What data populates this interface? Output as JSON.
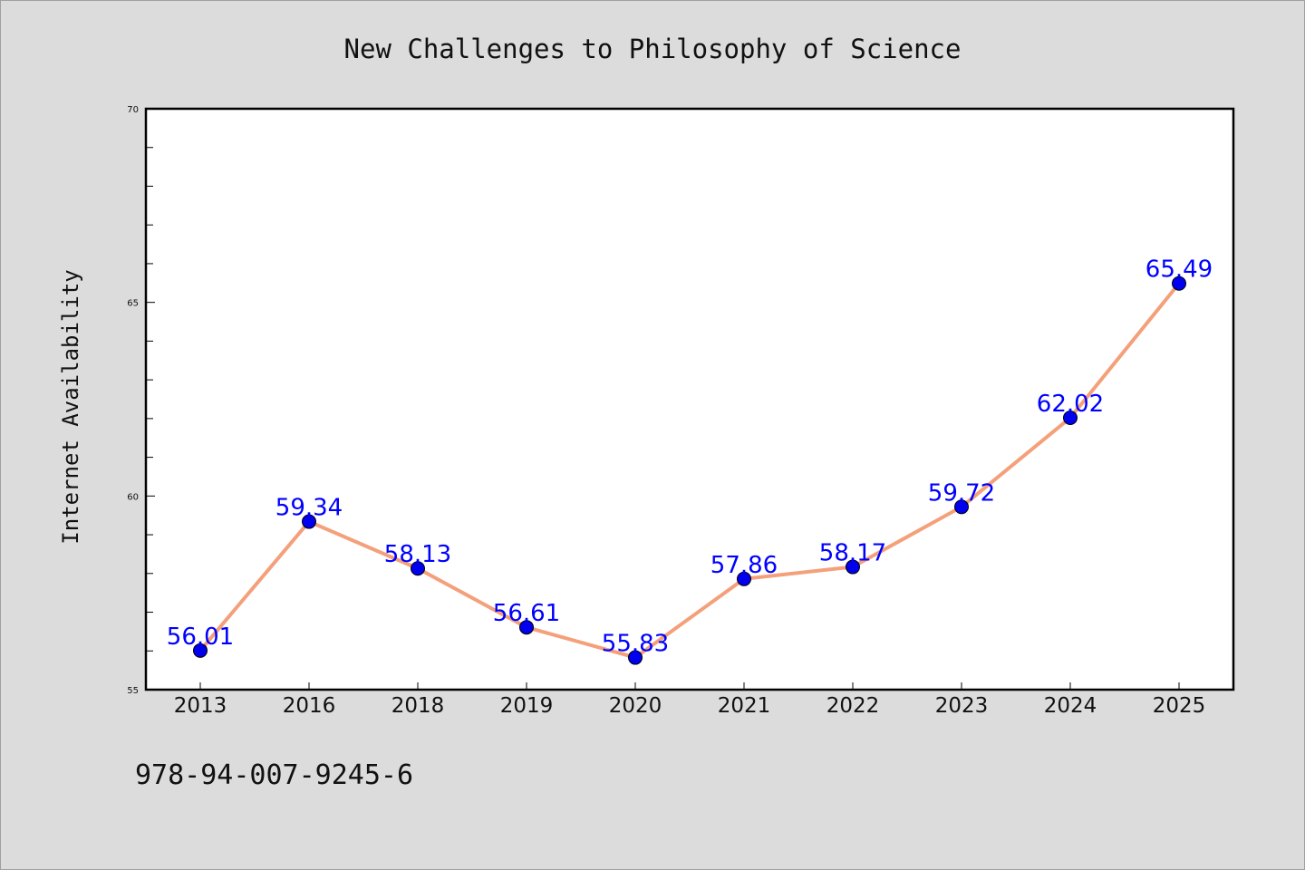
{
  "chart_data": {
    "type": "line",
    "title": "New Challenges to Philosophy of Science",
    "xlabel": "",
    "ylabel": "Internet Availability",
    "categories": [
      "2013",
      "2016",
      "2018",
      "2019",
      "2020",
      "2021",
      "2022",
      "2023",
      "2024",
      "2025"
    ],
    "series": [
      {
        "values": [
          56.01,
          59.34,
          58.13,
          56.61,
          55.83,
          57.86,
          58.17,
          59.72,
          62.02,
          65.49
        ],
        "data_labels": [
          "56.01",
          "59.34",
          "58.13",
          "56.61",
          "55.83",
          "57.86",
          "58.17",
          "59.72",
          "62.02",
          "65.49"
        ],
        "line_color": "#f4a07a",
        "marker_color": "#0000ee"
      }
    ],
    "ylim": [
      55,
      70
    ],
    "y_major_ticks": [
      55,
      60,
      65,
      70
    ],
    "y_tick_labels": [
      "55",
      "60",
      "65",
      "70"
    ],
    "grid": false,
    "legend": "none",
    "data_label_color": "#0000ff",
    "plot_background": "#ffffff",
    "figure_background": "#dcdcdc"
  },
  "footer_note": "978-94-007-9245-6"
}
